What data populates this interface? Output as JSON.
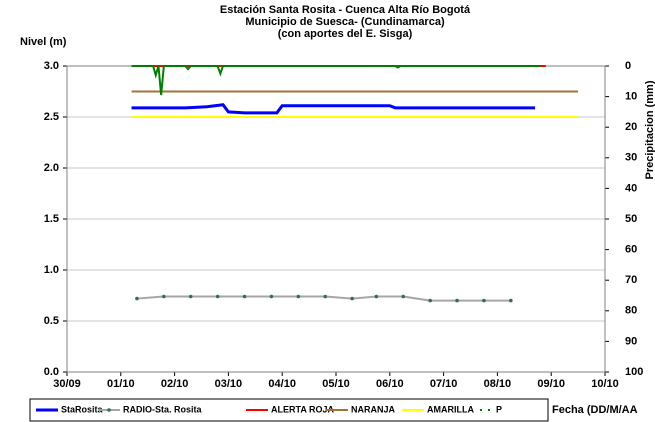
{
  "chart_data": {
    "type": "line",
    "title": "Estación Santa Rosita - Cuenca Alta Río Bogotá",
    "subtitle": [
      "Municipio de Suesca- (Cundinamarca)",
      "(con aportes del  E. Sisga)"
    ],
    "y_label": "Nivel (m)",
    "y2_label": "Precipitacion (mm)",
    "x_label": "Fecha (DD/M/AA",
    "xlim": [
      0,
      10
    ],
    "xticks": [
      {
        "value": 0,
        "label": "30/09"
      },
      {
        "value": 1,
        "label": "01/10"
      },
      {
        "value": 2,
        "label": "02/10"
      },
      {
        "value": 3,
        "label": "03/10"
      },
      {
        "value": 4,
        "label": "04/10"
      },
      {
        "value": 5,
        "label": "05/10"
      },
      {
        "value": 6,
        "label": "06/10"
      },
      {
        "value": 7,
        "label": "07/10"
      },
      {
        "value": 8,
        "label": "08/10"
      },
      {
        "value": 9,
        "label": "09/10"
      },
      {
        "value": 10,
        "label": "10/10"
      }
    ],
    "ylim": [
      0,
      3
    ],
    "yticks": [
      {
        "value": 0,
        "label": "0.0"
      },
      {
        "value": 0.5,
        "label": "0.5"
      },
      {
        "value": 1,
        "label": "1.0"
      },
      {
        "value": 1.5,
        "label": "1.5"
      },
      {
        "value": 2,
        "label": "2.0"
      },
      {
        "value": 2.5,
        "label": "2.5"
      },
      {
        "value": 3,
        "label": "3.0"
      }
    ],
    "y2lim": [
      100,
      0
    ],
    "y2ticks": [
      0,
      10,
      20,
      30,
      40,
      50,
      60,
      70,
      80,
      90,
      100
    ],
    "grid": true,
    "series": [
      {
        "name": "StaRosita",
        "color": "#0000ff",
        "width": 3,
        "x": [
          1.2,
          2.2,
          2.6,
          2.9,
          3.0,
          3.3,
          3.9,
          4.0,
          6.0,
          6.1,
          8.7
        ],
        "values": [
          2.59,
          2.59,
          2.6,
          2.62,
          2.55,
          2.54,
          2.54,
          2.61,
          2.61,
          2.59,
          2.59
        ]
      },
      {
        "name": "RADIO-Sta. Rosita",
        "color": "#a6a6a6",
        "width": 2,
        "marker_color": "#2f6f5f",
        "x": [
          1.3,
          1.8,
          2.3,
          2.8,
          3.3,
          3.8,
          4.3,
          4.8,
          5.3,
          5.75,
          6.25,
          6.75,
          7.25,
          7.75,
          8.25
        ],
        "values": [
          0.72,
          0.74,
          0.74,
          0.74,
          0.74,
          0.74,
          0.74,
          0.74,
          0.72,
          0.74,
          0.74,
          0.7,
          0.7,
          0.7,
          0.7
        ]
      },
      {
        "name": "ALERTA ROJA",
        "color": "#ff0000",
        "width": 2,
        "x": [
          1.2,
          8.9
        ],
        "values": [
          3,
          3
        ]
      },
      {
        "name": "NARANJA",
        "color": "#a5703a",
        "width": 2,
        "x": [
          1.2,
          9.5
        ],
        "values": [
          2.75,
          2.75
        ]
      },
      {
        "name": "AMARILLA",
        "color": "#ffff00",
        "width": 2,
        "x": [
          1.2,
          9.5
        ],
        "values": [
          2.5,
          2.5
        ]
      },
      {
        "name": "P",
        "color": "#008000",
        "width": 2,
        "axis": "y2",
        "x": [
          1.2,
          1.6,
          1.65,
          1.7,
          1.75,
          1.8,
          2.2,
          2.25,
          2.3,
          2.8,
          2.85,
          2.9,
          6.1,
          6.15,
          6.2,
          8.8
        ],
        "values": [
          0,
          0,
          3,
          0,
          9.5,
          0,
          0,
          1,
          0,
          0,
          2.5,
          0,
          0,
          0.5,
          0,
          0
        ]
      }
    ]
  }
}
